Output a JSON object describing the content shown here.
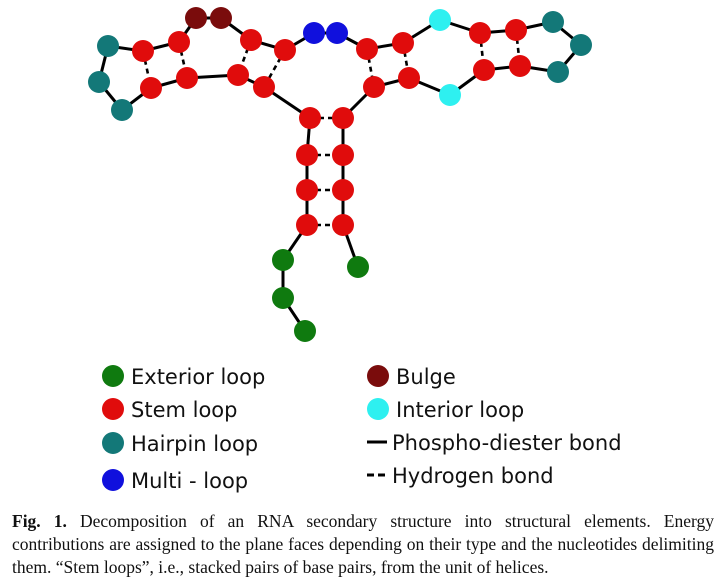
{
  "diagram": {
    "colors": {
      "exterior": "#0f7a0f",
      "stem": "#e00c0c",
      "hairpin": "#137878",
      "multi": "#1010dd",
      "bulge": "#7a0c0c",
      "interior": "#2ef0f0"
    },
    "legend": [
      {
        "type": "node",
        "kind": "exterior",
        "label": "Exterior loop"
      },
      {
        "type": "node",
        "kind": "stem",
        "label": "Stem loop"
      },
      {
        "type": "node",
        "kind": "hairpin",
        "label": "Hairpin loop"
      },
      {
        "type": "node",
        "kind": "multi",
        "label": "Multi - loop"
      },
      {
        "type": "node",
        "kind": "bulge",
        "label": "Bulge"
      },
      {
        "type": "node",
        "kind": "interior",
        "label": "Interior loop"
      },
      {
        "type": "solid",
        "label": "Phospho-diester bond"
      },
      {
        "type": "dashed",
        "label": "Hydrogen bond"
      }
    ]
  },
  "caption": {
    "label": "Fig. 1.",
    "text": "Decomposition of an RNA secondary structure into structural elements. Energy contributions are assigned to the plane faces depending on their type and the nucleotides delimiting them. “Stem loops”, i.e., stacked pairs of base pairs, from the unit of helices."
  }
}
